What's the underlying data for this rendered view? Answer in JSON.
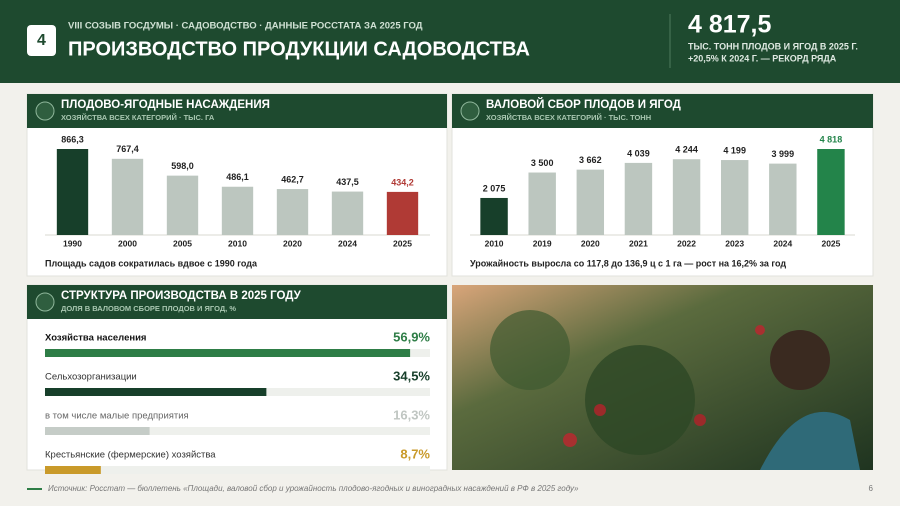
{
  "header": {
    "badge": "4",
    "supertitle": "VIII СОЗЫВ ГОСДУМЫ · САДОВОДСТВО · ДАННЫЕ РОССТАТА ЗА 2025 ГОД",
    "title": "ПРОИЗВОДСТВО ПРОДУКЦИИ САДОВОДСТВА",
    "kpi_value": "4 817,5",
    "kpi_line1": "ТЫС. ТОНН ПЛОДОВ И ЯГОД В 2025 Г.",
    "kpi_line2": "+20,5% К 2024 Г. — РЕКОРД РЯДА"
  },
  "chart_data": [
    {
      "type": "bar",
      "title": "ПЛОДОВО-ЯГОДНЫЕ НАСАЖДЕНИЯ",
      "subtitle": "ХОЗЯЙСТВА ВСЕХ КАТЕГОРИЙ · ТЫС. ГА",
      "categories": [
        "1990",
        "2000",
        "2005",
        "2010",
        "2020",
        "2024",
        "2025"
      ],
      "values": [
        866.3,
        767.4,
        598.0,
        486.1,
        462.7,
        437.5,
        434.2
      ],
      "value_labels": [
        "866,3",
        "767,4",
        "598,0",
        "486,1",
        "462,7",
        "437,5",
        "434,2"
      ],
      "colors": [
        "#173f2a",
        "#bcc6bf",
        "#bcc6bf",
        "#bcc6bf",
        "#bcc6bf",
        "#bcc6bf",
        "#b03a35"
      ],
      "note": "Площадь садов сократилась вдвое с 1990 года"
    },
    {
      "type": "bar",
      "title": "ВАЛОВОЙ СБОР ПЛОДОВ И ЯГОД",
      "subtitle": "ХОЗЯЙСТВА ВСЕХ КАТЕГОРИЙ · ТЫС. ТОНН",
      "categories": [
        "2010",
        "2019",
        "2020",
        "2021",
        "2022",
        "2023",
        "2024",
        "2025"
      ],
      "values": [
        2075,
        3500,
        3662,
        4039,
        4244,
        4199,
        3999,
        4818
      ],
      "value_labels": [
        "2 075",
        "3 500",
        "3 662",
        "4 039",
        "4 244",
        "4 199",
        "3 999",
        "4 818"
      ],
      "colors": [
        "#173f2a",
        "#bcc6bf",
        "#bcc6bf",
        "#bcc6bf",
        "#bcc6bf",
        "#bcc6bf",
        "#bcc6bf",
        "#23844a"
      ],
      "note": "Урожайность выросла со 117,8 до 136,9 ц с 1 га — рост на 16,2% за год"
    },
    {
      "type": "barh",
      "title": "СТРУКТУРА ПРОИЗВОДСТВА В 2025 ГОДУ",
      "subtitle": "ДОЛЯ В ВАЛОВОМ СБОРЕ ПЛОДОВ И ЯГОД, %",
      "categories": [
        "Хозяйства населения",
        "Сельхозорганизации",
        "в том числе малые предприятия",
        "Крестьянские (фермерские) хозяйства"
      ],
      "values": [
        56.9,
        34.5,
        16.3,
        8.7
      ],
      "value_labels": [
        "56,9%",
        "34,5%",
        "16,3%",
        "8,7%"
      ],
      "colors": [
        "#2e7d46",
        "#173f2a",
        "#c5ccc7",
        "#c99a2a"
      ],
      "xlim": [
        0,
        60
      ]
    }
  ],
  "footer": {
    "source": "Источник: Росстат — бюллетень «Площади, валовой сбор и урожайность плодово-ягодных и виноградных насаждений в РФ в 2025 году»",
    "page": "6"
  }
}
